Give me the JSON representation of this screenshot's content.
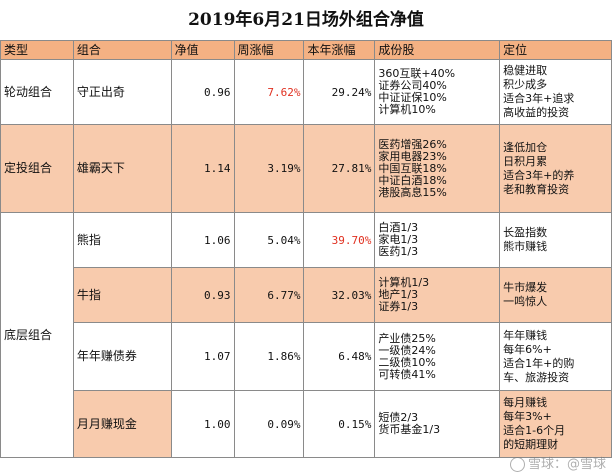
{
  "title": "2019年6月21日场外组合净值",
  "colors": {
    "header": "#f4b183",
    "shaded_row": "#f8cbad",
    "up_highlight": "#e03020"
  },
  "headers": [
    "类型",
    "组合",
    "净值",
    "周涨幅",
    "本年涨幅",
    "成份股",
    "定位"
  ],
  "groups": [
    {
      "type": "轮动组合",
      "rows": [
        {
          "name": "守正出奇",
          "nav": "0.96",
          "week": "7.62%",
          "ytd": "29.24%",
          "holdings": [
            "360互联+40%",
            "证券公司40%",
            "中证证保10%",
            "计算机10%"
          ],
          "position": [
            "稳健进取",
            "积少成多",
            "适合3年+追求",
            "高收益的投资"
          ]
        }
      ]
    },
    {
      "type": "定投组合",
      "rows": [
        {
          "name": "雄霸天下",
          "nav": "1.14",
          "week": "3.19%",
          "ytd": "27.81%",
          "holdings": [
            "医药增强26%",
            "家用电器23%",
            "中国互联18%",
            "中证白酒18%",
            "港股高息15%"
          ],
          "position": [
            "逢低加仓",
            "日积月累",
            "适合3年+的养",
            "老和教育投资"
          ]
        }
      ]
    },
    {
      "type": "底层组合",
      "rows": [
        {
          "name": "熊指",
          "nav": "1.06",
          "week": "5.04%",
          "ytd": "39.70%",
          "holdings": [
            "白酒1/3",
            "家电1/3",
            "医药1/3"
          ],
          "position": [
            "长盈指数",
            "熊市赚钱"
          ]
        },
        {
          "name": "牛指",
          "nav": "0.93",
          "week": "6.77%",
          "ytd": "32.03%",
          "holdings": [
            "计算机1/3",
            "地产1/3",
            "证券1/3"
          ],
          "position": [
            "牛市爆发",
            "一鸣惊人"
          ]
        },
        {
          "name": "年年赚债券",
          "nav": "1.07",
          "week": "1.86%",
          "ytd": "6.48%",
          "holdings": [
            "产业债25%",
            "一级债24%",
            "二级债10%",
            "可转债41%"
          ],
          "position": [
            "年年赚钱",
            "每年6%+",
            "适合1年+的购",
            "车、旅游投资"
          ]
        },
        {
          "name": "月月赚现金",
          "nav": "1.00",
          "week": "0.09%",
          "ytd": "0.15%",
          "holdings": [
            "短债2/3",
            "货币基金1/3"
          ],
          "position": [
            "每月赚钱",
            "每年3%+",
            "适合1-6个月",
            "的短期理财"
          ]
        }
      ]
    }
  ],
  "watermark": "雪球：@雪球"
}
